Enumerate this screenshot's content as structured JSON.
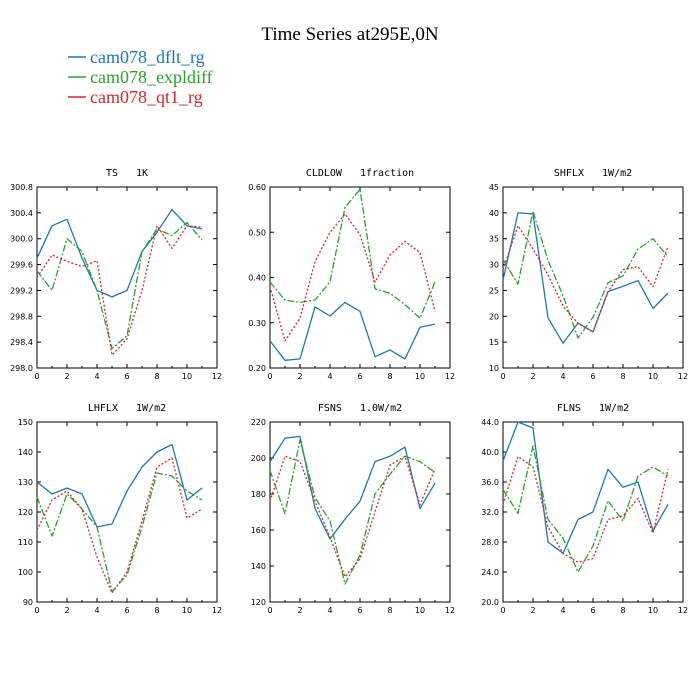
{
  "figure": {
    "title": "Time Series at295E,0N",
    "legend": [
      {
        "name": "cam078_dflt_rg",
        "color": "#1f77b4",
        "dash": "solid"
      },
      {
        "name": "cam078_expldiff",
        "color": "#2ca02c",
        "dash": "dashdot"
      },
      {
        "name": "cam078_qt1_rg",
        "color": "#d62728",
        "dash": "dotted"
      }
    ]
  },
  "chart_data": [
    {
      "type": "line",
      "title": "TS   1K",
      "x": [
        0,
        1,
        2,
        3,
        4,
        5,
        6,
        7,
        8,
        9,
        10,
        11
      ],
      "xlim": [
        0,
        12
      ],
      "xticks": [
        0,
        2,
        4,
        6,
        8,
        10,
        12
      ],
      "ylim": [
        298.0,
        300.8
      ],
      "yticks": [
        "298.0",
        "298.4",
        "298.8",
        "299.2",
        "299.6",
        "300.0",
        "300.4",
        "300.8"
      ],
      "series": [
        {
          "name": "cam078_dflt_rg",
          "values": [
            299.7,
            300.2,
            300.3,
            299.7,
            299.2,
            299.1,
            299.2,
            299.8,
            300.1,
            300.45,
            300.2,
            300.15
          ]
        },
        {
          "name": "cam078_expldiff",
          "values": [
            299.5,
            299.2,
            300.0,
            299.8,
            299.2,
            298.3,
            298.5,
            299.8,
            300.15,
            300.05,
            300.25,
            299.98
          ]
        },
        {
          "name": "cam078_qt1_rg",
          "values": [
            299.4,
            299.75,
            299.65,
            299.57,
            299.66,
            298.2,
            298.45,
            299.2,
            300.2,
            299.85,
            300.2,
            300.18
          ]
        }
      ]
    },
    {
      "type": "line",
      "title": "CLDLOW   1fraction",
      "x": [
        0,
        1,
        2,
        3,
        4,
        5,
        6,
        7,
        8,
        9,
        10,
        11
      ],
      "xlim": [
        0,
        12
      ],
      "xticks": [
        0,
        2,
        4,
        6,
        8,
        10,
        12
      ],
      "ylim": [
        0.2,
        0.6
      ],
      "yticks": [
        "0.20",
        "0.30",
        "0.40",
        "0.50",
        "0.60"
      ],
      "series": [
        {
          "name": "cam078_dflt_rg",
          "values": [
            0.26,
            0.217,
            0.22,
            0.335,
            0.315,
            0.345,
            0.325,
            0.225,
            0.24,
            0.22,
            0.29,
            0.297
          ]
        },
        {
          "name": "cam078_expldiff",
          "values": [
            0.39,
            0.35,
            0.345,
            0.35,
            0.39,
            0.555,
            0.595,
            0.375,
            0.365,
            0.34,
            0.31,
            0.39
          ]
        },
        {
          "name": "cam078_qt1_rg",
          "values": [
            0.38,
            0.26,
            0.31,
            0.435,
            0.5,
            0.54,
            0.495,
            0.39,
            0.45,
            0.48,
            0.455,
            0.325
          ]
        }
      ]
    },
    {
      "type": "line",
      "title": "SHFLX   1W/m2",
      "x": [
        0,
        1,
        2,
        3,
        4,
        5,
        6,
        7,
        8,
        9,
        10,
        11
      ],
      "xlim": [
        0,
        12
      ],
      "xticks": [
        0,
        2,
        4,
        6,
        8,
        10,
        12
      ],
      "ylim": [
        10,
        45
      ],
      "yticks": [
        "10",
        "15",
        "20",
        "25",
        "30",
        "35",
        "40",
        "45"
      ],
      "series": [
        {
          "name": "cam078_dflt_rg",
          "values": [
            27,
            40,
            39.8,
            19.7,
            14.8,
            18.7,
            17,
            24.8,
            25.8,
            26.9,
            21.5,
            24.5
          ]
        },
        {
          "name": "cam078_expldiff",
          "values": [
            31,
            26.2,
            40.3,
            30.8,
            24,
            15.8,
            19.8,
            26.5,
            27.8,
            33,
            35,
            31.5
          ]
        },
        {
          "name": "cam078_qt1_rg",
          "values": [
            29,
            37.5,
            33,
            28,
            22,
            18.6,
            17,
            24.7,
            29,
            29.6,
            25.7,
            33.5
          ]
        }
      ]
    },
    {
      "type": "line",
      "title": "LHFLX   1W/m2",
      "x": [
        0,
        1,
        2,
        3,
        4,
        5,
        6,
        7,
        8,
        9,
        10,
        11
      ],
      "xlim": [
        0,
        12
      ],
      "xticks": [
        0,
        2,
        4,
        6,
        8,
        10,
        12
      ],
      "ylim": [
        90,
        150
      ],
      "yticks": [
        "90",
        "100",
        "110",
        "120",
        "130",
        "140",
        "150"
      ],
      "series": [
        {
          "name": "cam078_dflt_rg",
          "values": [
            130,
            126,
            128,
            126,
            115,
            116,
            127,
            135,
            140,
            142.5,
            124,
            128
          ]
        },
        {
          "name": "cam078_expldiff",
          "values": [
            125,
            112,
            126,
            121,
            115,
            93.5,
            99,
            115,
            133,
            132,
            127,
            124
          ]
        },
        {
          "name": "cam078_qt1_rg",
          "values": [
            114,
            124,
            127,
            121,
            105,
            93,
            100,
            117,
            135,
            138,
            118,
            121
          ]
        }
      ]
    },
    {
      "type": "line",
      "title": "FSNS   1.0W/m2",
      "x": [
        0,
        1,
        2,
        3,
        4,
        5,
        6,
        7,
        8,
        9,
        10,
        11
      ],
      "xlim": [
        0,
        12
      ],
      "xticks": [
        0,
        2,
        4,
        6,
        8,
        10,
        12
      ],
      "ylim": [
        120,
        220
      ],
      "yticks": [
        "120",
        "140",
        "160",
        "180",
        "200",
        "220"
      ],
      "series": [
        {
          "name": "cam078_dflt_rg",
          "values": [
            198,
            211,
            212,
            172,
            155,
            166,
            176,
            198,
            201,
            206,
            172,
            186
          ]
        },
        {
          "name": "cam078_expldiff",
          "values": [
            193,
            169,
            210,
            178,
            165,
            130,
            146,
            180,
            191,
            201,
            198,
            192
          ]
        },
        {
          "name": "cam078_qt1_rg",
          "values": [
            176,
            201,
            198,
            176,
            156,
            134,
            144,
            170,
            196,
            201,
            174,
            194
          ]
        }
      ]
    },
    {
      "type": "line",
      "title": "FLNS   1W/m2",
      "x": [
        0,
        1,
        2,
        3,
        4,
        5,
        6,
        7,
        8,
        9,
        10,
        11
      ],
      "xlim": [
        0,
        12
      ],
      "xticks": [
        0,
        2,
        4,
        6,
        8,
        10,
        12
      ],
      "ylim": [
        20,
        44
      ],
      "yticks": [
        "20.0",
        "24.0",
        "28.0",
        "32.0",
        "36.0",
        "40.0",
        "44.0"
      ],
      "series": [
        {
          "name": "cam078_dflt_rg",
          "values": [
            38.8,
            44,
            43.2,
            28,
            26.5,
            31,
            32,
            37.7,
            35.3,
            36,
            29.5,
            33
          ]
        },
        {
          "name": "cam078_expldiff",
          "values": [
            35,
            31.8,
            40.8,
            31,
            28.5,
            24,
            27.5,
            33.5,
            30.8,
            36.8,
            38,
            36.8
          ]
        },
        {
          "name": "cam078_qt1_rg",
          "values": [
            33,
            39.4,
            38,
            30,
            26.5,
            25.3,
            25.8,
            31,
            31.5,
            33.8,
            29.2,
            37.7
          ]
        }
      ]
    }
  ]
}
